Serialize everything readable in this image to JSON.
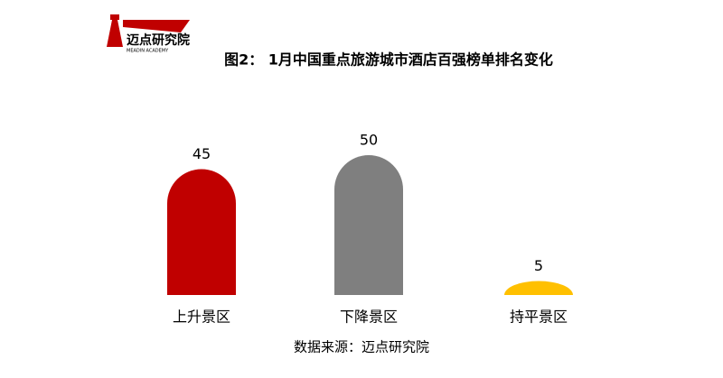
{
  "logo": {
    "name": "迈点研究院",
    "subtitle": "MEADIN ACADEMY"
  },
  "chart_data": {
    "type": "bar",
    "title": "图2： 1月中国重点旅游城市酒店百强榜单排名变化",
    "categories": [
      "上升景区",
      "下降景区",
      "持平景区"
    ],
    "values": [
      45,
      50,
      5
    ],
    "colors": [
      "#c00000",
      "#7f7f7f",
      "#ffc000"
    ],
    "source": "数据来源：迈点研究院"
  }
}
